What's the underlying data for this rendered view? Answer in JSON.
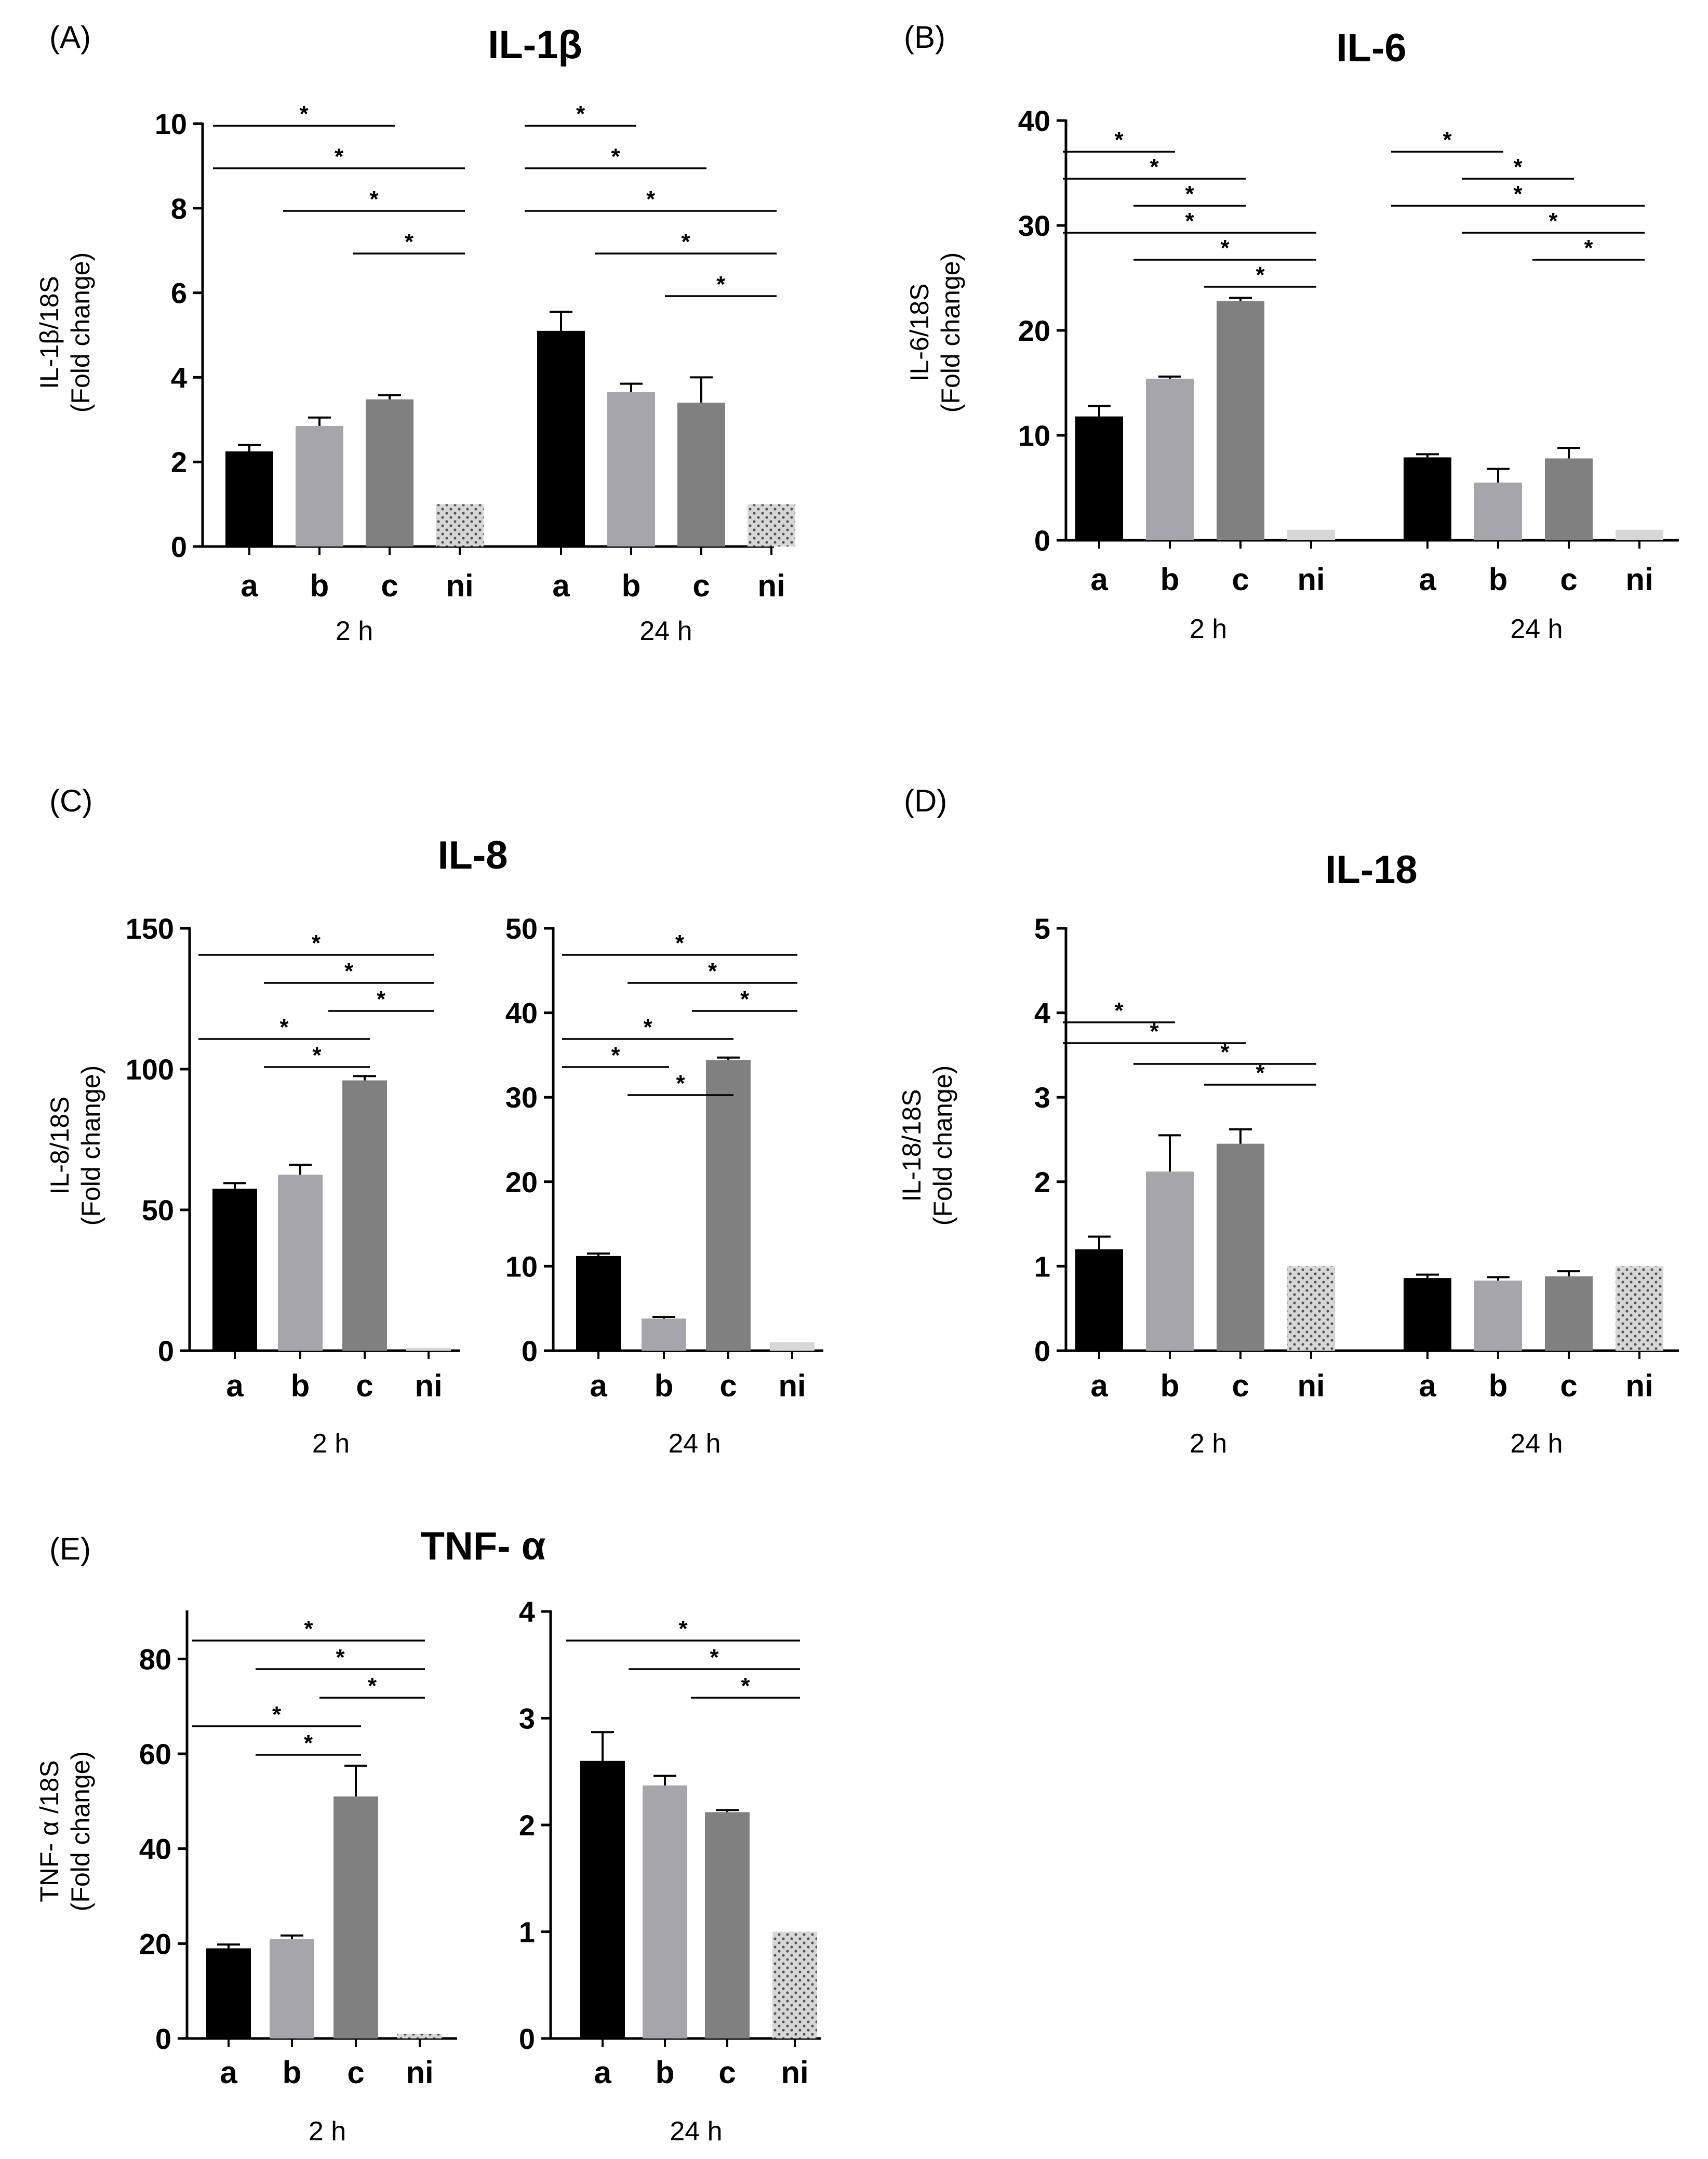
{
  "colors": {
    "a": "#000000",
    "b": "#a6a5ab",
    "c": "#808080",
    "ni": "#d7d7d7"
  },
  "panels": [
    {
      "id": "A",
      "label": "(A)",
      "title": "IL-1β",
      "ylabel": [
        "IL-1β/18S",
        "(Fold change)"
      ],
      "ylim": [
        0,
        10
      ],
      "ticks": [
        "0",
        "2",
        "4",
        "6",
        "8",
        "10"
      ],
      "groups": [
        {
          "label": "2 h",
          "categories": [
            "a",
            "b",
            "c",
            "ni"
          ],
          "values": [
            2.25,
            2.85,
            3.48,
            1.0
          ],
          "errors": [
            0.15,
            0.2,
            0.1,
            0
          ],
          "sig": [
            [
              "a",
              "c",
              "*"
            ],
            [
              "a",
              "ni",
              "*"
            ],
            [
              "b",
              "ni",
              "*"
            ],
            [
              "c",
              "ni",
              "*"
            ]
          ]
        },
        {
          "label": "24 h",
          "categories": [
            "a",
            "b",
            "c",
            "ni"
          ],
          "values": [
            5.1,
            3.65,
            3.4,
            1.0
          ],
          "errors": [
            0.45,
            0.2,
            0.6,
            0
          ],
          "sig": [
            [
              "a",
              "b",
              "*"
            ],
            [
              "a",
              "c",
              "*"
            ],
            [
              "a",
              "ni",
              "*"
            ],
            [
              "b",
              "ni",
              "*"
            ],
            [
              "c",
              "ni",
              "*"
            ]
          ]
        }
      ]
    },
    {
      "id": "B",
      "label": "(B)",
      "title": "IL-6",
      "ylabel": [
        "IL-6/18S",
        "(Fold change)"
      ],
      "ylim": [
        0,
        40
      ],
      "ticks": [
        "0",
        "10",
        "20",
        "30",
        "40"
      ],
      "groups": [
        {
          "label": "2 h",
          "categories": [
            "a",
            "b",
            "c",
            "ni"
          ],
          "values": [
            11.8,
            15.4,
            22.8,
            1.0
          ],
          "errors": [
            1.0,
            0.2,
            0.3,
            0
          ],
          "sig": [
            [
              "a",
              "b",
              "*"
            ],
            [
              "a",
              "c",
              "*"
            ],
            [
              "b",
              "c",
              "*"
            ],
            [
              "a",
              "ni",
              "*"
            ],
            [
              "b",
              "ni",
              "*"
            ],
            [
              "c",
              "ni",
              "*"
            ]
          ]
        },
        {
          "label": "24 h",
          "categories": [
            "a",
            "b",
            "c",
            "ni"
          ],
          "values": [
            7.9,
            5.5,
            7.8,
            1.0
          ],
          "errors": [
            0.3,
            1.3,
            1.0,
            0
          ],
          "sig": [
            [
              "a",
              "b",
              "*"
            ],
            [
              "b",
              "c",
              "*"
            ],
            [
              "a",
              "ni",
              "*"
            ],
            [
              "b",
              "ni",
              "*"
            ],
            [
              "c",
              "ni",
              "*"
            ]
          ]
        }
      ]
    },
    {
      "id": "C",
      "label": "(C)",
      "title": "IL-8",
      "ylabel": [
        "IL-8/18S",
        "(Fold change)"
      ],
      "groups": [
        {
          "label": "2 h",
          "ylim": [
            0,
            150
          ],
          "ticks": [
            "0",
            "50",
            "100",
            "150"
          ],
          "categories": [
            "a",
            "b",
            "c",
            "ni"
          ],
          "values": [
            57.5,
            62.5,
            96.0,
            1.0
          ],
          "errors": [
            2.0,
            3.5,
            1.5,
            0
          ],
          "sig": [
            [
              "a",
              "ni",
              "*"
            ],
            [
              "b",
              "ni",
              "*"
            ],
            [
              "c",
              "ni",
              "*"
            ],
            [
              "a",
              "c",
              "*"
            ],
            [
              "b",
              "c",
              "*"
            ]
          ]
        },
        {
          "label": "24 h",
          "ylim": [
            0,
            50
          ],
          "ticks": [
            "0",
            "10",
            "20",
            "30",
            "40",
            "50"
          ],
          "categories": [
            "a",
            "b",
            "c",
            "ni"
          ],
          "values": [
            11.2,
            3.8,
            34.4,
            1.0
          ],
          "errors": [
            0.3,
            0.2,
            0.3,
            0
          ],
          "sig": [
            [
              "a",
              "ni",
              "*"
            ],
            [
              "b",
              "ni",
              "*"
            ],
            [
              "c",
              "ni",
              "*"
            ],
            [
              "a",
              "c",
              "*"
            ],
            [
              "a",
              "b",
              "*"
            ],
            [
              "b",
              "c",
              "*"
            ]
          ]
        }
      ]
    },
    {
      "id": "D",
      "label": "(D)",
      "title": "IL-18",
      "ylabel": [
        "IL-18/18S",
        "(Fold change)"
      ],
      "ylim": [
        0,
        5
      ],
      "ticks": [
        "0",
        "1",
        "2",
        "3",
        "4",
        "5"
      ],
      "groups": [
        {
          "label": "2 h",
          "categories": [
            "a",
            "b",
            "c",
            "ni"
          ],
          "values": [
            1.2,
            2.12,
            2.45,
            1.0
          ],
          "errors": [
            0.15,
            0.43,
            0.17,
            0
          ],
          "sig": [
            [
              "a",
              "b",
              "*"
            ],
            [
              "a",
              "c",
              "*"
            ],
            [
              "b",
              "ni",
              "*"
            ],
            [
              "c",
              "ni",
              "*"
            ]
          ]
        },
        {
          "label": "24 h",
          "categories": [
            "a",
            "b",
            "c",
            "ni"
          ],
          "values": [
            0.86,
            0.83,
            0.88,
            1.0
          ],
          "errors": [
            0.04,
            0.04,
            0.06,
            0
          ],
          "sig": []
        }
      ]
    },
    {
      "id": "E",
      "label": "(E)",
      "title": "TNF- α",
      "ylabel": [
        "TNF- α /18S",
        "(Fold change)"
      ],
      "groups": [
        {
          "label": "2 h",
          "ylim": [
            0,
            90
          ],
          "ticks": [
            "0",
            "20",
            "40",
            "60",
            "80"
          ],
          "categories": [
            "a",
            "b",
            "c",
            "ni"
          ],
          "values": [
            19.0,
            21.0,
            51.0,
            1.0
          ],
          "errors": [
            0.8,
            0.7,
            6.5,
            0
          ],
          "sig": [
            [
              "a",
              "ni",
              "*"
            ],
            [
              "b",
              "ni",
              "*"
            ],
            [
              "c",
              "ni",
              "*"
            ],
            [
              "a",
              "c",
              "*"
            ],
            [
              "b",
              "c",
              "*"
            ]
          ]
        },
        {
          "label": "24 h",
          "ylim": [
            0,
            4
          ],
          "ticks": [
            "0",
            "1",
            "2",
            "3",
            "4"
          ],
          "categories": [
            "a",
            "b",
            "c",
            "ni"
          ],
          "values": [
            2.6,
            2.37,
            2.12,
            1.0
          ],
          "errors": [
            0.27,
            0.09,
            0.02,
            0
          ],
          "sig": [
            [
              "a",
              "ni",
              "*"
            ],
            [
              "b",
              "ni",
              "*"
            ],
            [
              "c",
              "ni",
              "*"
            ]
          ]
        }
      ]
    }
  ],
  "chart_data": [
    {
      "type": "bar",
      "title": "IL-1β",
      "ylabel": "IL-1β/18S (Fold change)",
      "ylim": [
        0,
        10
      ],
      "categories": [
        "a",
        "b",
        "c",
        "ni"
      ],
      "series": [
        {
          "name": "2 h",
          "values": [
            2.25,
            2.85,
            3.48,
            1.0
          ]
        },
        {
          "name": "24 h",
          "values": [
            5.1,
            3.65,
            3.4,
            1.0
          ]
        }
      ]
    },
    {
      "type": "bar",
      "title": "IL-6",
      "ylabel": "IL-6/18S (Fold change)",
      "ylim": [
        0,
        40
      ],
      "categories": [
        "a",
        "b",
        "c",
        "ni"
      ],
      "series": [
        {
          "name": "2 h",
          "values": [
            11.8,
            15.4,
            22.8,
            1.0
          ]
        },
        {
          "name": "24 h",
          "values": [
            7.9,
            5.5,
            7.8,
            1.0
          ]
        }
      ]
    },
    {
      "type": "bar",
      "title": "IL-8",
      "ylabel": "IL-8/18S (Fold change)",
      "categories": [
        "a",
        "b",
        "c",
        "ni"
      ],
      "series": [
        {
          "name": "2 h",
          "values": [
            57.5,
            62.5,
            96.0,
            1.0
          ],
          "ylim": [
            0,
            150
          ]
        },
        {
          "name": "24 h",
          "values": [
            11.2,
            3.8,
            34.4,
            1.0
          ],
          "ylim": [
            0,
            50
          ]
        }
      ]
    },
    {
      "type": "bar",
      "title": "IL-18",
      "ylabel": "IL-18/18S (Fold change)",
      "ylim": [
        0,
        5
      ],
      "categories": [
        "a",
        "b",
        "c",
        "ni"
      ],
      "series": [
        {
          "name": "2 h",
          "values": [
            1.2,
            2.12,
            2.45,
            1.0
          ]
        },
        {
          "name": "24 h",
          "values": [
            0.86,
            0.83,
            0.88,
            1.0
          ]
        }
      ]
    },
    {
      "type": "bar",
      "title": "TNF- α",
      "ylabel": "TNF- α /18S (Fold change)",
      "categories": [
        "a",
        "b",
        "c",
        "ni"
      ],
      "series": [
        {
          "name": "2 h",
          "values": [
            19.0,
            21.0,
            51.0,
            1.0
          ],
          "ylim": [
            0,
            90
          ]
        },
        {
          "name": "24 h",
          "values": [
            2.6,
            2.37,
            2.12,
            1.0
          ],
          "ylim": [
            0,
            4
          ]
        }
      ]
    }
  ]
}
